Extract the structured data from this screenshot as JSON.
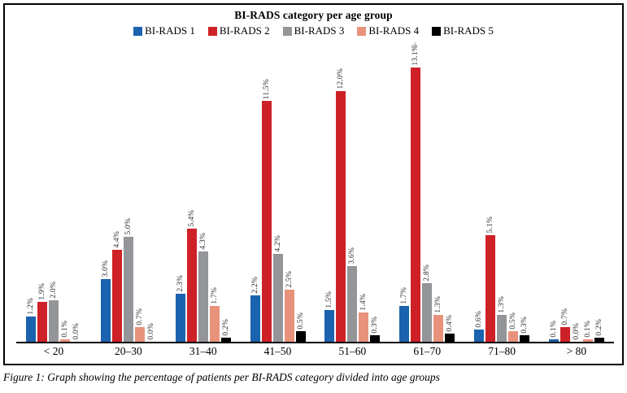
{
  "figure": {
    "caption": "Figure 1: Graph showing the percentage of patients per BI-RADS category divided into age groups"
  },
  "chart_data": {
    "type": "bar",
    "title": "BI-RADS category per age group",
    "categories": [
      "< 20",
      "20–30",
      "31–40",
      "41–50",
      "51–60",
      "61–70",
      "71–80",
      "> 80"
    ],
    "series": [
      {
        "name": "BI-RADS 1",
        "color": "#1b63ae",
        "values": [
          1.2,
          3.0,
          2.3,
          2.2,
          1.5,
          1.7,
          0.6,
          0.1
        ]
      },
      {
        "name": "BI-RADS 2",
        "color": "#ce2127",
        "values": [
          1.9,
          4.4,
          5.4,
          11.5,
          12.0,
          13.1,
          5.1,
          0.7
        ]
      },
      {
        "name": "BI-RADS 3",
        "color": "#939598",
        "values": [
          2.0,
          5.0,
          4.3,
          4.2,
          3.6,
          2.8,
          1.3,
          0.0
        ]
      },
      {
        "name": "BI-RADS 4",
        "color": "#e8927c",
        "values": [
          0.1,
          0.7,
          1.7,
          2.5,
          1.4,
          1.3,
          0.5,
          0.1
        ]
      },
      {
        "name": "BI-RADS 5",
        "color": "#000000",
        "values": [
          0.0,
          0.0,
          0.2,
          0.5,
          0.3,
          0.4,
          0.3,
          0.2
        ]
      }
    ],
    "value_label_format": "{value}%",
    "value_label_decimals": 1,
    "ylim": [
      0,
      14
    ],
    "grid": false,
    "legend_position": "top",
    "xlabel": "",
    "ylabel": ""
  }
}
